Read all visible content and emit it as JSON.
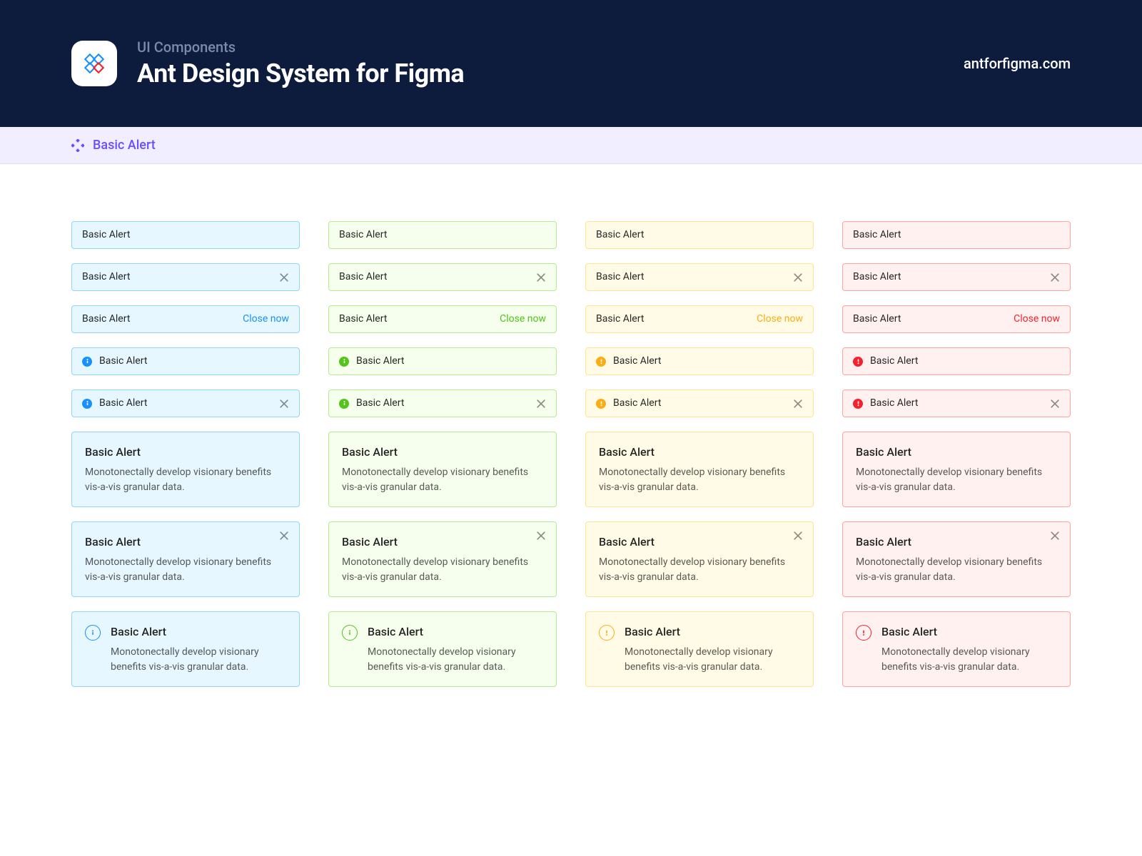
{
  "colors": {
    "hero_bg": "#0d1b3d",
    "hero_eyebrow": "#7a8aa8",
    "section_bg": "#f1eeff",
    "section_fg": "#6b4eff",
    "logo_blue": "#1890ff",
    "logo_red": "#f5222d"
  },
  "hero": {
    "eyebrow": "UI Components",
    "title": "Ant Design System for Figma",
    "url": "antforfigma.com"
  },
  "section": {
    "title": "Basic Alert"
  },
  "strings": {
    "alert_label": "Basic Alert",
    "close_now": "Close now",
    "desc": "Monotonectally develop visionary benefits vis-a-vis granular data."
  },
  "variants": [
    {
      "name": "info",
      "bg": "#e6f7ff",
      "border": "#91d5ff",
      "accent": "#1890ff"
    },
    {
      "name": "success",
      "bg": "#f6ffed",
      "border": "#b7eb8f",
      "accent": "#52c41a"
    },
    {
      "name": "warning",
      "bg": "#fffbe6",
      "border": "#ffe58f",
      "accent": "#faad14"
    },
    {
      "name": "error",
      "bg": "#fff1f0",
      "border": "#ffa39e",
      "accent": "#f5222d"
    }
  ],
  "rows": [
    {
      "kind": "plain"
    },
    {
      "kind": "plain_close_x"
    },
    {
      "kind": "plain_close_text"
    },
    {
      "kind": "plain_icon"
    },
    {
      "kind": "plain_icon_close_x"
    },
    {
      "kind": "big"
    },
    {
      "kind": "big_close_x"
    },
    {
      "kind": "big_icon"
    }
  ]
}
